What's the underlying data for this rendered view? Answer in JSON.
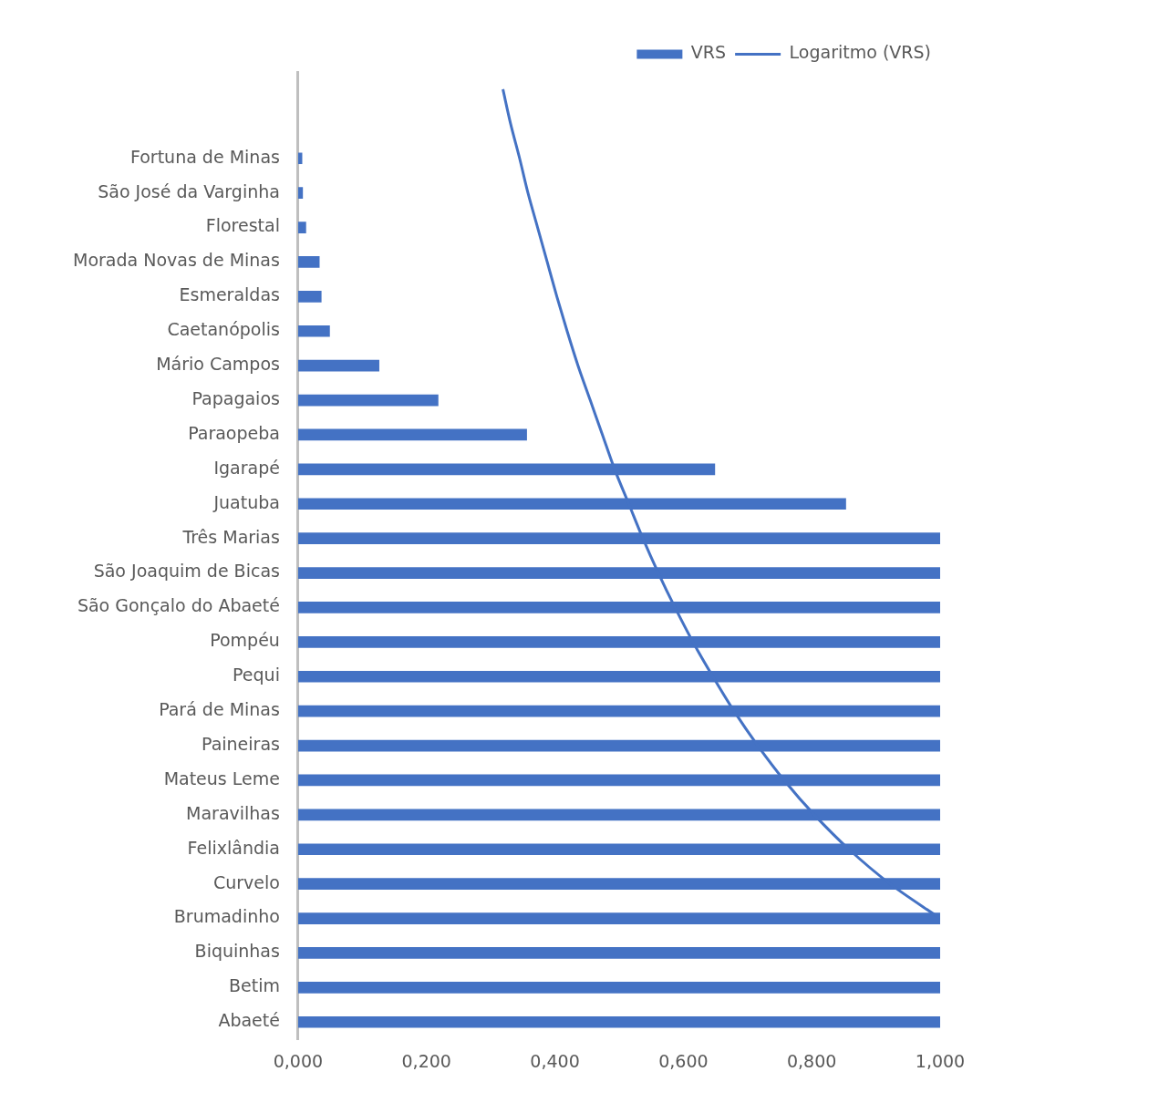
{
  "chart_data": {
    "type": "bar",
    "orientation": "horizontal",
    "legend": "top right",
    "marker": "none",
    "line_style": "solid",
    "categories": [
      null,
      null,
      "Fortuna de Minas",
      "São José da Varginha",
      "Florestal",
      "Morada Novas de Minas",
      "Esmeraldas",
      "Caetanópolis",
      "Mário Campos",
      "Papagaios",
      "Paraopeba",
      "Igarapé",
      "Juatuba",
      "Três Marias",
      "São Joaquim de Bicas",
      "São Gonçalo do Abaeté",
      "Pompéu",
      "Pequi",
      "Pará de Minas",
      "Paineiras",
      "Mateus Leme",
      "Maravilhas",
      "Felixlândia",
      "Curvelo",
      "Brumadinho",
      "Biquinhas",
      "Betim",
      "Abaeté"
    ],
    "series": [
      {
        "name": "VRS",
        "type": "bar",
        "color": "#4472c4",
        "values": [
          null,
          null,
          0.006,
          0.007,
          0.012,
          0.033,
          0.036,
          0.049,
          0.126,
          0.218,
          0.356,
          0.649,
          0.853,
          1.0,
          1.0,
          1.0,
          1.0,
          1.0,
          1.0,
          1.0,
          1.0,
          1.0,
          1.0,
          1.0,
          1.0,
          1.0,
          1.0,
          1.0
        ]
      },
      {
        "name": "Logaritmo (VRS)",
        "type": "line",
        "color": "#4472c4",
        "values": [
          0.319,
          0.331,
          0.345,
          0.358,
          0.373,
          0.388,
          0.403,
          0.419,
          0.436,
          0.455,
          0.474,
          0.493,
          0.515,
          0.537,
          0.561,
          0.587,
          0.615,
          0.646,
          0.679,
          0.716,
          0.757,
          0.804,
          0.858,
          0.922,
          1.0,
          null,
          null,
          null
        ]
      }
    ],
    "xlim": [
      0,
      1
    ],
    "xticks": [
      {
        "value": 0,
        "label": "0,000"
      },
      {
        "value": 0.2,
        "label": "0,200"
      },
      {
        "value": 0.4,
        "label": "0,400"
      },
      {
        "value": 0.6,
        "label": "0,600"
      },
      {
        "value": 0.8,
        "label": "0,800"
      },
      {
        "value": 1,
        "label": "1,000"
      }
    ]
  }
}
